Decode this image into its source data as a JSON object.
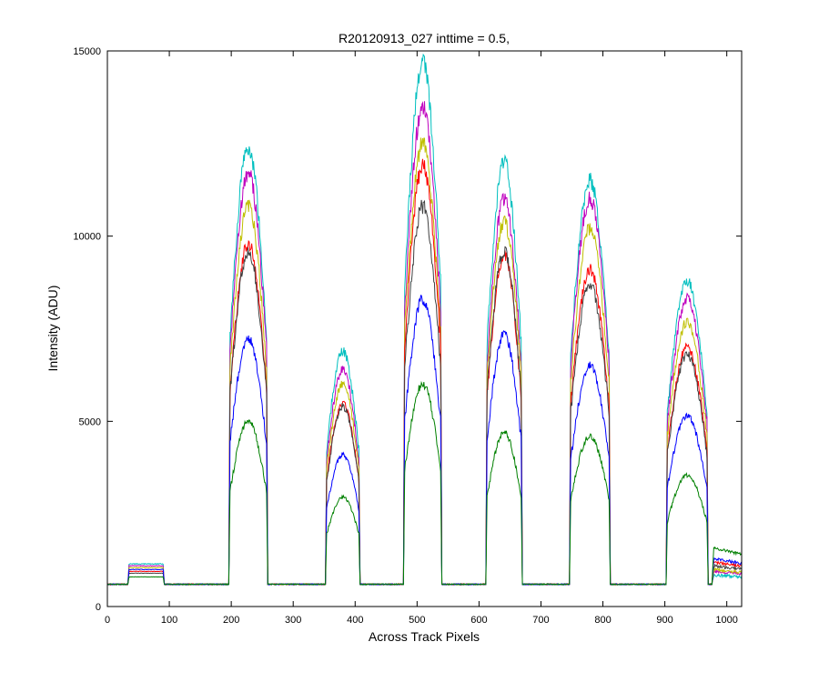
{
  "chart_data": {
    "type": "line",
    "title": "R20120913_027 inttime = 0.5,",
    "xlabel": "Across Track Pixels",
    "ylabel": "Intensity (ADU)",
    "xlim": [
      0,
      1024
    ],
    "ylim": [
      0,
      15000
    ],
    "xticks": [
      0,
      100,
      200,
      300,
      400,
      500,
      600,
      700,
      800,
      900,
      1000
    ],
    "yticks": [
      0,
      5000,
      10000,
      15000
    ],
    "grid": false,
    "legend": "none",
    "baseline": 600,
    "peaks": [
      {
        "start": 33,
        "end": 92
      },
      {
        "start": 196,
        "end": 259
      },
      {
        "start": 352,
        "end": 408
      },
      {
        "start": 478,
        "end": 540
      },
      {
        "start": 611,
        "end": 670
      },
      {
        "start": 746,
        "end": 812
      },
      {
        "start": 902,
        "end": 970
      }
    ],
    "series": [
      {
        "color": "#00bfbf",
        "peak_values": [
          1150,
          12400,
          6900,
          14700,
          12000,
          11500,
          8800
        ],
        "tail": 850
      },
      {
        "color": "#bf00bf",
        "peak_values": [
          1100,
          11700,
          6400,
          13500,
          11000,
          11000,
          8300
        ],
        "tail": 950
      },
      {
        "color": "#bfbf00",
        "peak_values": [
          1050,
          10800,
          6000,
          12500,
          10400,
          10200,
          7700
        ],
        "tail": 1000
      },
      {
        "color": "#ff0000",
        "peak_values": [
          950,
          9800,
          5500,
          11900,
          9500,
          9100,
          7000
        ],
        "tail": 1200
      },
      {
        "color": "#404040",
        "peak_values": [
          900,
          9600,
          5400,
          10800,
          9600,
          8700,
          6800
        ],
        "tail": 1100
      },
      {
        "color": "#0000ff",
        "peak_values": [
          1000,
          7250,
          4100,
          8300,
          7350,
          6500,
          5150
        ],
        "tail": 1300
      },
      {
        "color": "#008000",
        "peak_values": [
          800,
          5000,
          2950,
          6000,
          4700,
          4600,
          3550
        ],
        "tail": 1600
      }
    ]
  }
}
